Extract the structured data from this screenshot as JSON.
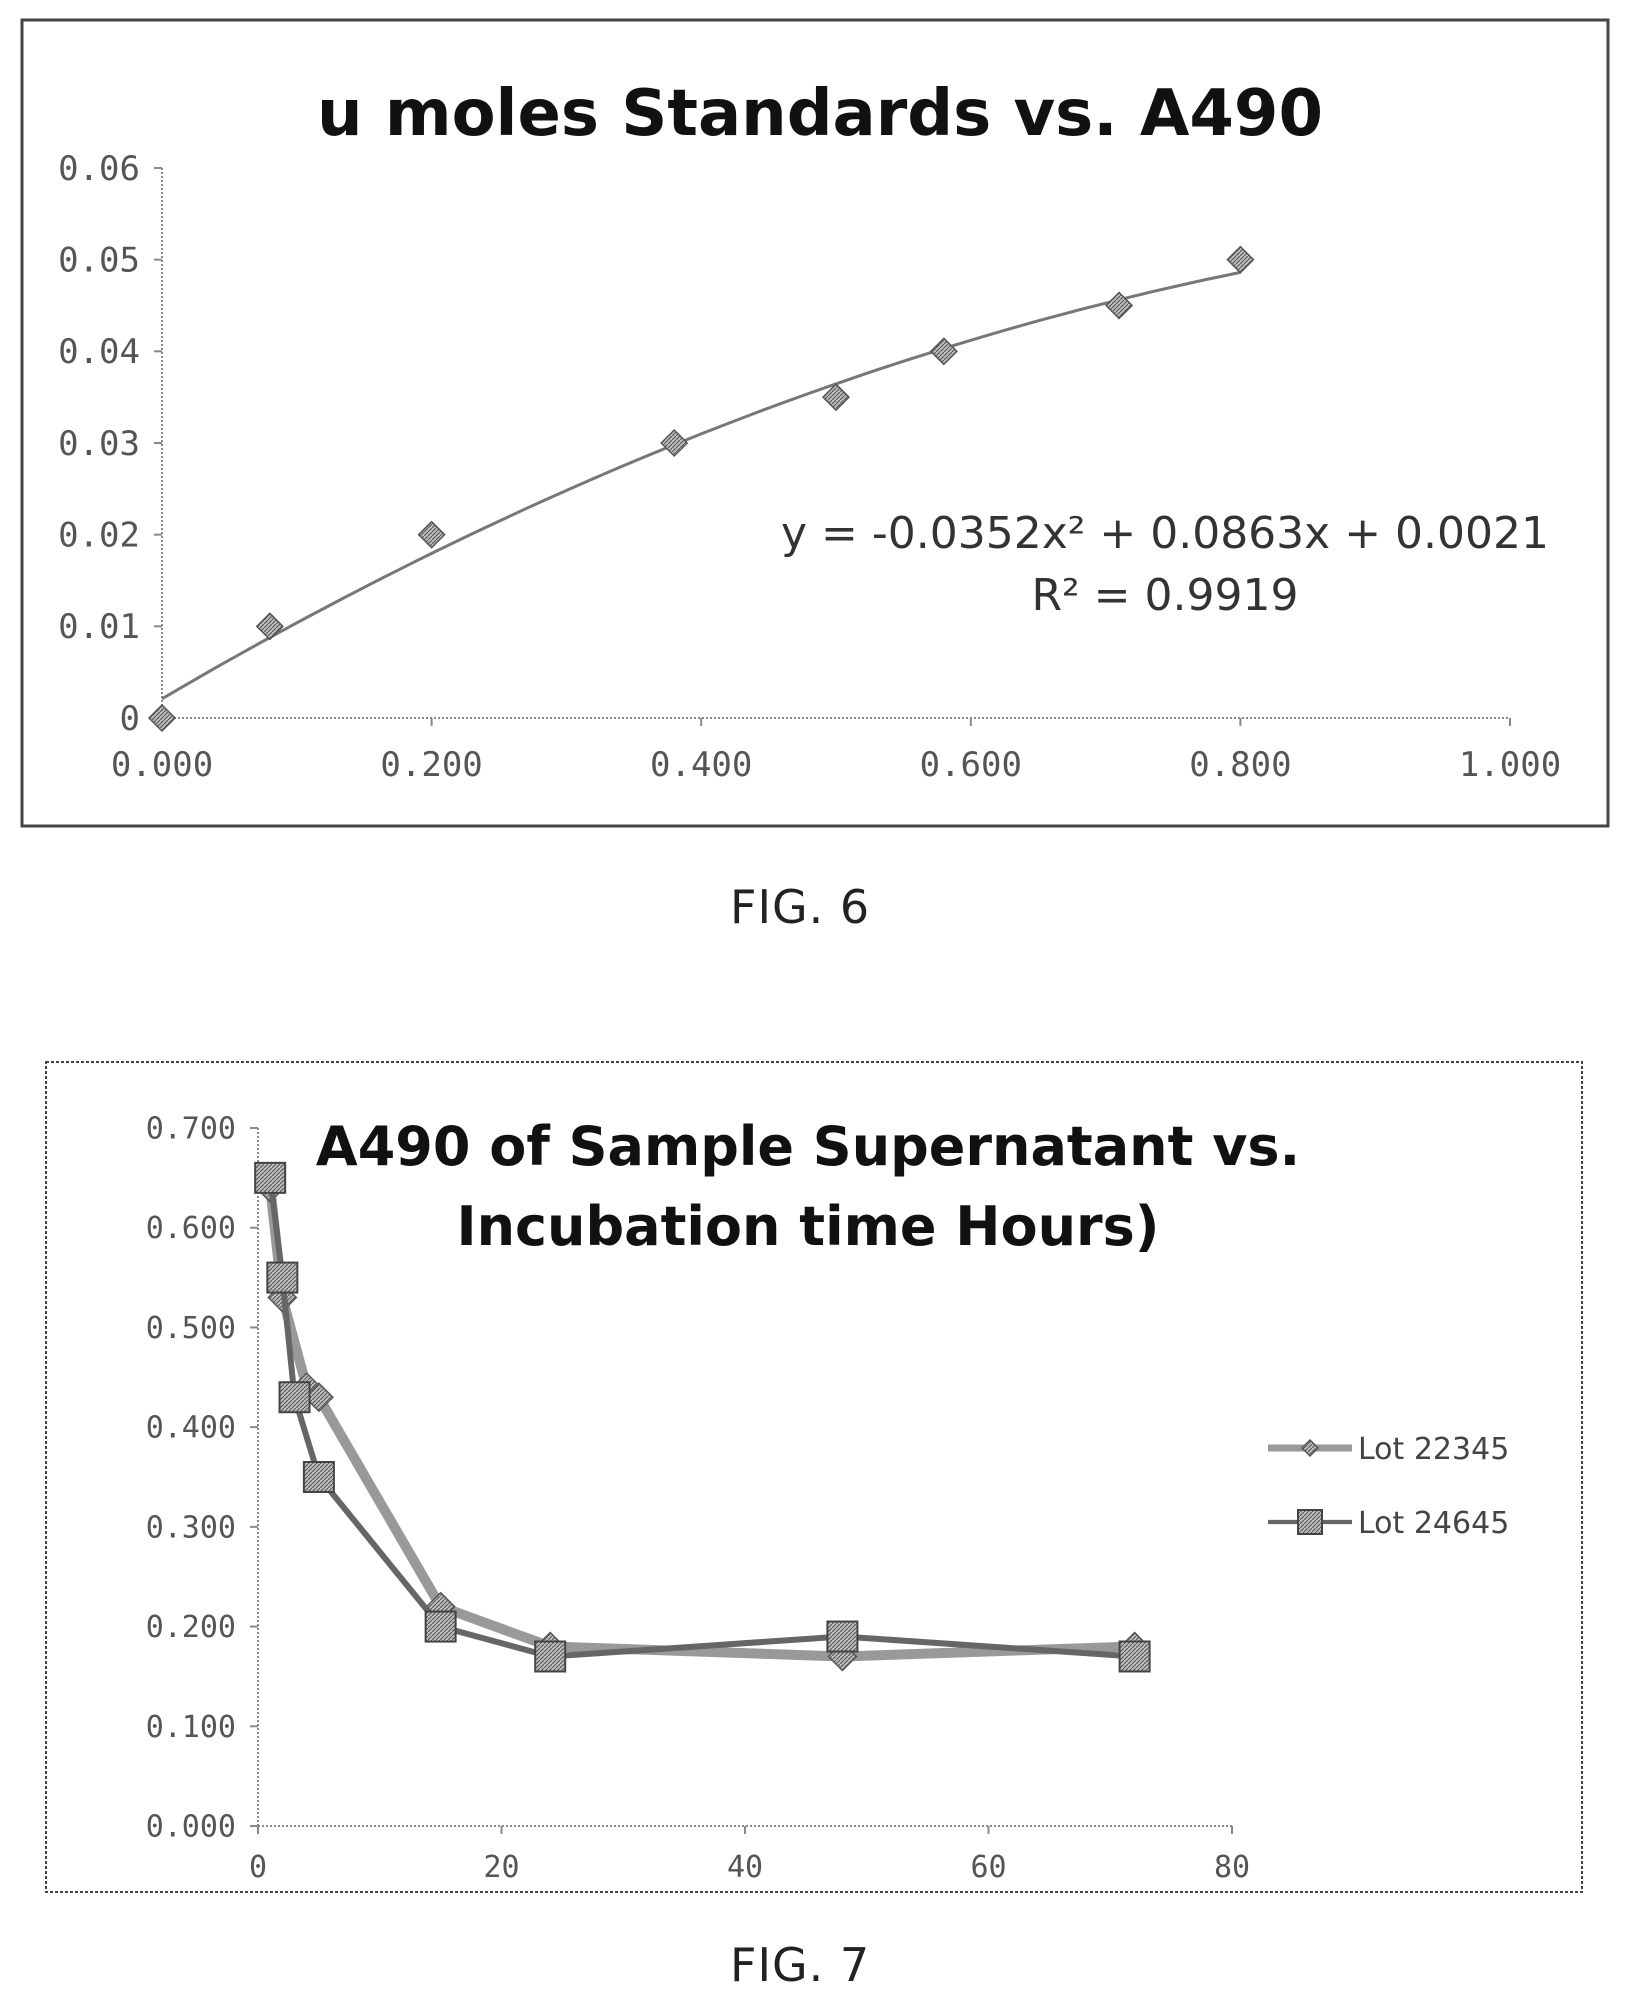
{
  "chart_data": [
    {
      "type": "scatter",
      "title": "u moles Standards vs. A490",
      "x": [
        0.0,
        0.08,
        0.2,
        0.38,
        0.5,
        0.58,
        0.71,
        0.8
      ],
      "y": [
        0.0,
        0.01,
        0.02,
        0.03,
        0.035,
        0.04,
        0.045,
        0.05
      ],
      "xlim": [
        0,
        1.0
      ],
      "ylim": [
        0,
        0.06
      ],
      "xticks": [
        "0.000",
        "0.200",
        "0.400",
        "0.600",
        "0.800",
        "1.000"
      ],
      "xtick_values": [
        0,
        0.2,
        0.4,
        0.6,
        0.8,
        1.0
      ],
      "yticks": [
        "0",
        "0.01",
        "0.02",
        "0.03",
        "0.04",
        "0.05",
        "0.06"
      ],
      "ytick_values": [
        0,
        0.01,
        0.02,
        0.03,
        0.04,
        0.05,
        0.06
      ],
      "trendline": {
        "type": "polynomial",
        "a": -0.0352,
        "b": 0.0863,
        "c": 0.0021,
        "x_from": 0.0,
        "x_to": 0.8
      },
      "equation": "y = -0.0352x² + 0.0863x + 0.0021",
      "r_squared": "R² = 0.9919",
      "grid": false,
      "caption": "FIG. 6"
    },
    {
      "type": "line",
      "title_lines": [
        "A490 of Sample Supernatant vs.",
        "Incubation time Hours)"
      ],
      "series": [
        {
          "name": "Lot 22345",
          "x": [
            1,
            2,
            4,
            5,
            15,
            24,
            48,
            72
          ],
          "y": [
            0.64,
            0.53,
            0.44,
            0.43,
            0.22,
            0.18,
            0.17,
            0.18
          ]
        },
        {
          "name": "Lot 24645",
          "x": [
            1,
            2,
            3,
            5,
            15,
            24,
            48,
            72
          ],
          "y": [
            0.65,
            0.55,
            0.43,
            0.35,
            0.2,
            0.17,
            0.19,
            0.17
          ]
        }
      ],
      "xlim": [
        0,
        80
      ],
      "ylim": [
        0,
        0.7
      ],
      "xticks": [
        "0",
        "20",
        "40",
        "60",
        "80"
      ],
      "xtick_values": [
        0,
        20,
        40,
        60,
        80
      ],
      "yticks": [
        "0.000",
        "0.100",
        "0.200",
        "0.300",
        "0.400",
        "0.500",
        "0.600",
        "0.700"
      ],
      "ytick_values": [
        0,
        0.1,
        0.2,
        0.3,
        0.4,
        0.5,
        0.6,
        0.7
      ],
      "legend": "right",
      "grid": false,
      "caption": "FIG. 7"
    }
  ]
}
